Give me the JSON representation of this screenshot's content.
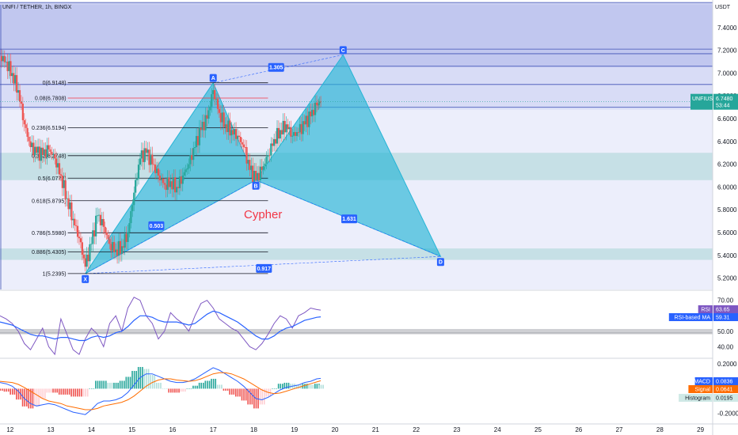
{
  "header": {
    "symbol_title": "UNFI / TETHER, 1h, BINGX"
  },
  "price_axis": {
    "currency": "USDT",
    "ticks": [
      "7.4000",
      "7.2000",
      "7.0000",
      "6.8000",
      "6.6000",
      "6.4000",
      "6.2000",
      "6.0000",
      "5.8000",
      "5.6000",
      "5.4000",
      "5.2000"
    ],
    "tick_values": [
      7.4,
      7.2,
      7.0,
      6.8,
      6.6,
      6.4,
      6.2,
      6.0,
      5.8,
      5.6,
      5.4,
      5.2
    ],
    "ylim": [
      5.1,
      7.6
    ],
    "last_price_tag": {
      "symbol": "UNFIUSDT",
      "price": "6.7480",
      "countdown": "53:44",
      "value": 6.748,
      "color": "#26a69a"
    }
  },
  "time_axis": {
    "ticks": [
      "12",
      "13",
      "14",
      "15",
      "16",
      "17",
      "18",
      "19",
      "20",
      "21",
      "22",
      "23",
      "24",
      "25",
      "26",
      "27",
      "28",
      "29"
    ],
    "tick_values": [
      12,
      13,
      14,
      15,
      16,
      17,
      18,
      19,
      20,
      21,
      22,
      23,
      24,
      25,
      26,
      27,
      28,
      29
    ],
    "xlim": [
      11.75,
      29.3
    ]
  },
  "fibonacci": {
    "levels": [
      {
        "label": "0(6.9148)",
        "value": 6.9148,
        "color": "#131722"
      },
      {
        "label": "0.08(6.7808)",
        "value": 6.7808,
        "color": "#f23645"
      },
      {
        "label": "0.236(6.5194)",
        "value": 6.5194,
        "color": "#131722"
      },
      {
        "label": "0.382(6.2748)",
        "value": 6.2748,
        "color": "#131722"
      },
      {
        "label": "0.5(6.0772)",
        "value": 6.0772,
        "color": "#131722"
      },
      {
        "label": "0.618(5.8795)",
        "value": 5.8795,
        "color": "#131722"
      },
      {
        "label": "0.786(5.5980)",
        "value": 5.598,
        "color": "#131722"
      },
      {
        "label": "0.886(5.4305)",
        "value": 5.4305,
        "color": "#131722"
      },
      {
        "label": "1(5.2395)",
        "value": 5.2395,
        "color": "#131722"
      }
    ],
    "x_range": [
      12.6,
      18.35
    ]
  },
  "cypher_pattern": {
    "title": "Cypher",
    "title_color": "#f23645",
    "fill_color": "#26b5d6",
    "points": [
      {
        "name": "X",
        "x": 13.85,
        "y": 5.2395
      },
      {
        "name": "A",
        "x": 17.0,
        "y": 6.9148
      },
      {
        "name": "B",
        "x": 18.05,
        "y": 6.06
      },
      {
        "name": "C",
        "x": 20.2,
        "y": 7.16
      },
      {
        "name": "D",
        "x": 22.6,
        "y": 5.39
      }
    ],
    "ratios": [
      {
        "label": "0.503",
        "x": 15.6,
        "y": 5.66
      },
      {
        "label": "1.305",
        "x": 18.55,
        "y": 7.05
      },
      {
        "label": "1.631",
        "x": 20.35,
        "y": 5.72
      },
      {
        "label": "0.917",
        "x": 18.25,
        "y": 5.285
      }
    ]
  },
  "zones": [
    {
      "from": 7.05,
      "to": 7.62,
      "color": "#9fa8e6"
    },
    {
      "from": 6.68,
      "to": 7.05,
      "color": "#c9cef2"
    },
    {
      "from": 6.06,
      "to": 6.3,
      "color": "#a8d6d6"
    },
    {
      "from": 5.36,
      "to": 5.46,
      "color": "#a8d6d6"
    }
  ],
  "zone_lines": [
    7.62,
    7.21,
    7.17,
    7.06,
    6.9,
    6.7
  ],
  "price_series": {
    "x": [
      11.75,
      11.9,
      12.05,
      12.2,
      12.35,
      12.5,
      12.65,
      12.8,
      12.95,
      13.1,
      13.25,
      13.4,
      13.55,
      13.7,
      13.85,
      14.0,
      14.15,
      14.3,
      14.45,
      14.6,
      14.75,
      14.9,
      15.05,
      15.2,
      15.35,
      15.5,
      15.65,
      15.8,
      15.95,
      16.1,
      16.25,
      16.4,
      16.55,
      16.7,
      16.85,
      17.0,
      17.15,
      17.3,
      17.45,
      17.6,
      17.75,
      17.9,
      18.05,
      18.2,
      18.35,
      18.5,
      18.65,
      18.8,
      18.95,
      19.1,
      19.25,
      19.4,
      19.55,
      19.65
    ],
    "close": [
      7.15,
      7.1,
      7.0,
      6.85,
      6.55,
      6.35,
      6.3,
      6.28,
      6.33,
      6.25,
      6.1,
      5.9,
      5.72,
      5.55,
      5.3,
      5.5,
      5.75,
      5.65,
      5.5,
      5.45,
      5.48,
      5.6,
      5.95,
      6.25,
      6.3,
      6.2,
      6.1,
      6.02,
      6.05,
      6.0,
      6.1,
      6.2,
      6.35,
      6.5,
      6.6,
      6.85,
      6.65,
      6.55,
      6.5,
      6.45,
      6.35,
      6.15,
      6.06,
      6.15,
      6.28,
      6.42,
      6.5,
      6.55,
      6.45,
      6.48,
      6.55,
      6.62,
      6.72,
      6.75
    ]
  },
  "rsi_pane": {
    "ticks": [
      "70.00",
      "50.00",
      "40.00"
    ],
    "tick_values": [
      70,
      50,
      40
    ],
    "ylim": [
      33,
      76
    ],
    "rsi": {
      "label": "RSI",
      "value": "63.65",
      "color": "#7e57c2"
    },
    "rsi_ma": {
      "label": "RSI-based MA",
      "value": "59.31",
      "color": "#2962ff"
    },
    "rsi_values": [
      60,
      58,
      55,
      50,
      42,
      38,
      45,
      52,
      40,
      35,
      58,
      48,
      38,
      35,
      45,
      52,
      48,
      40,
      55,
      60,
      50,
      65,
      72,
      70,
      60,
      55,
      45,
      50,
      62,
      58,
      55,
      50,
      60,
      68,
      70,
      65,
      58,
      55,
      52,
      50,
      45,
      40,
      38,
      42,
      48,
      55,
      60,
      58,
      52,
      60,
      62,
      65,
      64,
      63.65
    ],
    "ma_values": [
      56,
      55,
      54,
      52,
      50,
      48,
      47,
      47,
      46,
      45,
      46,
      46,
      45,
      44,
      44,
      46,
      47,
      46,
      47,
      49,
      50,
      53,
      57,
      60,
      60,
      59,
      57,
      56,
      56,
      56,
      55,
      54,
      55,
      58,
      61,
      63,
      62,
      60,
      58,
      56,
      53,
      50,
      47,
      45,
      45,
      47,
      50,
      52,
      53,
      55,
      57,
      58,
      59,
      59.31
    ]
  },
  "macd_pane": {
    "ticks": [
      "0.2000",
      "0.0000",
      "-0.2000"
    ],
    "tick_values": [
      0.2,
      0.0,
      -0.2
    ],
    "ylim": [
      -0.26,
      0.24
    ],
    "macd": {
      "label": "MACD",
      "value": "0.0836",
      "color": "#2962ff"
    },
    "signal": {
      "label": "Signal",
      "value": "0.0641",
      "color": "#ff6d00"
    },
    "histogram": {
      "label": "Histogram",
      "value": "0.0195",
      "color": "#26a69a"
    },
    "macd_values": [
      0.05,
      0.04,
      0.02,
      -0.02,
      -0.08,
      -0.12,
      -0.14,
      -0.13,
      -0.12,
      -0.13,
      -0.15,
      -0.17,
      -0.19,
      -0.2,
      -0.21,
      -0.17,
      -0.12,
      -0.1,
      -0.1,
      -0.09,
      -0.07,
      -0.03,
      0.03,
      0.09,
      0.12,
      0.12,
      0.1,
      0.08,
      0.06,
      0.05,
      0.05,
      0.06,
      0.08,
      0.11,
      0.14,
      0.17,
      0.15,
      0.12,
      0.09,
      0.06,
      0.02,
      -0.03,
      -0.08,
      -0.09,
      -0.07,
      -0.04,
      -0.01,
      0.01,
      0.02,
      0.03,
      0.05,
      0.06,
      0.08,
      0.0836
    ],
    "signal_values": [
      0.06,
      0.055,
      0.05,
      0.035,
      0.01,
      -0.02,
      -0.05,
      -0.08,
      -0.1,
      -0.11,
      -0.12,
      -0.14,
      -0.15,
      -0.16,
      -0.17,
      -0.17,
      -0.16,
      -0.14,
      -0.13,
      -0.12,
      -0.11,
      -0.09,
      -0.06,
      -0.02,
      0.02,
      0.05,
      0.07,
      0.08,
      0.08,
      0.07,
      0.065,
      0.06,
      0.065,
      0.08,
      0.1,
      0.12,
      0.13,
      0.13,
      0.12,
      0.1,
      0.08,
      0.05,
      0.02,
      -0.01,
      -0.03,
      -0.04,
      -0.035,
      -0.02,
      -0.005,
      0.01,
      0.025,
      0.04,
      0.055,
      0.0641
    ]
  }
}
